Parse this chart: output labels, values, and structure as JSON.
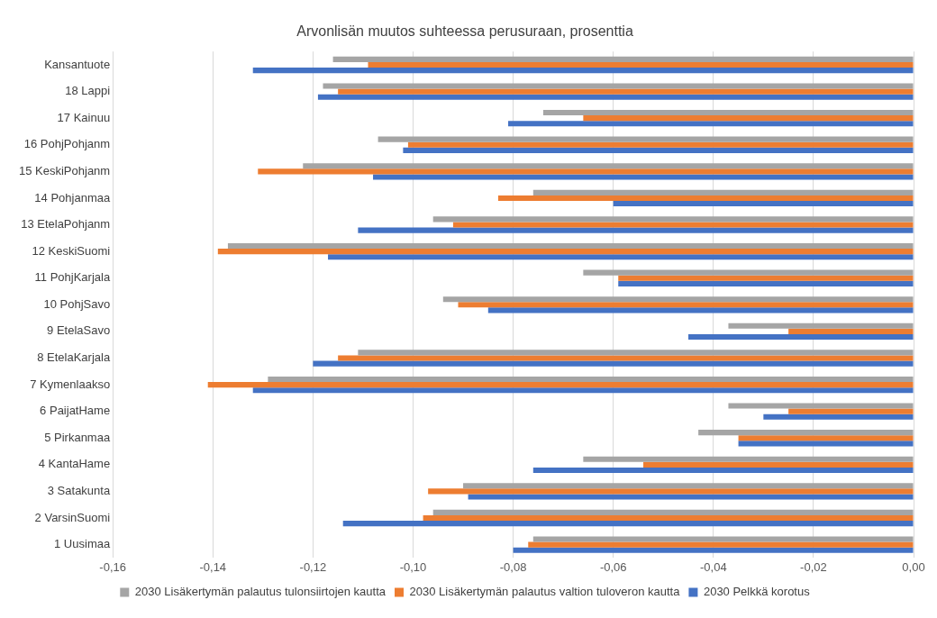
{
  "chart_data": {
    "type": "bar",
    "orientation": "horizontal",
    "title": "Arvonlisän muutos suhteessa perusuraan, prosenttia",
    "categories": [
      "Kansantuote",
      "18 Lappi",
      "17 Kainuu",
      "16 PohjPohjanm",
      "15 KeskiPohjanm",
      "14 Pohjanmaa",
      "13 EtelaPohjanm",
      "12 KeskiSuomi",
      "11 PohjKarjala",
      "10 PohjSavo",
      "9 EtelaSavo",
      "8 EtelaKarjala",
      "7 Kymenlaakso",
      "6 PaijatHame",
      "5 Pirkanmaa",
      "4 KantaHame",
      "3 Satakunta",
      "2 VarsinSuomi",
      "1 Uusimaa"
    ],
    "series": [
      {
        "name": "2030 Lisäkertymän palautus tulonsiirtojen kautta",
        "color": "#a5a5a5",
        "values": [
          -0.116,
          -0.118,
          -0.074,
          -0.107,
          -0.122,
          -0.076,
          -0.096,
          -0.137,
          -0.066,
          -0.094,
          -0.037,
          -0.111,
          -0.129,
          -0.037,
          -0.043,
          -0.066,
          -0.09,
          -0.096,
          -0.076
        ]
      },
      {
        "name": "2030 Lisäkertymän palautus valtion tuloveron kautta",
        "color": "#ed7d31",
        "values": [
          -0.109,
          -0.115,
          -0.066,
          -0.101,
          -0.131,
          -0.083,
          -0.092,
          -0.139,
          -0.059,
          -0.091,
          -0.025,
          -0.115,
          -0.141,
          -0.025,
          -0.035,
          -0.054,
          -0.097,
          -0.098,
          -0.077
        ]
      },
      {
        "name": "2030 Pelkkä korotus",
        "color": "#4472c4",
        "values": [
          -0.132,
          -0.119,
          -0.081,
          -0.102,
          -0.108,
          -0.06,
          -0.111,
          -0.117,
          -0.059,
          -0.085,
          -0.045,
          -0.12,
          -0.132,
          -0.03,
          -0.035,
          -0.076,
          -0.089,
          -0.114,
          -0.08
        ]
      }
    ],
    "xlim": [
      -0.16,
      0
    ],
    "xticks": [
      {
        "value": -0.16,
        "label": "-0,16"
      },
      {
        "value": -0.14,
        "label": "-0,14"
      },
      {
        "value": -0.12,
        "label": "-0,12"
      },
      {
        "value": -0.1,
        "label": "-0,10"
      },
      {
        "value": -0.08,
        "label": "-0,08"
      },
      {
        "value": -0.06,
        "label": "-0,06"
      },
      {
        "value": -0.04,
        "label": "-0,04"
      },
      {
        "value": -0.02,
        "label": "-0,02"
      },
      {
        "value": 0,
        "label": "0,00"
      }
    ],
    "grid": "x",
    "legend": "bottom"
  }
}
